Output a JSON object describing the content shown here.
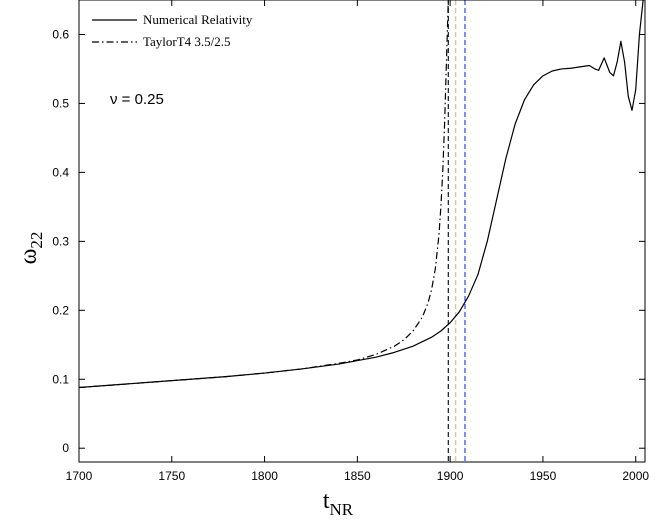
{
  "chart_data": {
    "type": "line",
    "title": "",
    "xlabel": "t",
    "xlabel_sub": "NR",
    "ylabel": "ω",
    "ylabel_sub": "22",
    "xlim": [
      1700,
      2005
    ],
    "ylim": [
      -0.02,
      0.65
    ],
    "xticks": [
      1700,
      1750,
      1800,
      1850,
      1900,
      1950,
      2000
    ],
    "yticks": [
      0,
      0.1,
      0.2,
      0.3,
      0.4,
      0.5,
      0.6
    ],
    "grid": false,
    "legend_position": "top-left",
    "annotation": "ν = 0.25",
    "series": [
      {
        "name": "Numerical Relativity",
        "style": "solid",
        "color": "#000000",
        "x": [
          1700,
          1720,
          1740,
          1760,
          1780,
          1800,
          1820,
          1840,
          1860,
          1870,
          1880,
          1890,
          1895,
          1900,
          1905,
          1910,
          1915,
          1920,
          1925,
          1930,
          1935,
          1940,
          1945,
          1950,
          1955,
          1960,
          1965,
          1970,
          1975,
          1978,
          1980,
          1983,
          1986,
          1988,
          1990,
          1992,
          1994,
          1996,
          1998,
          2000,
          2002,
          2004
        ],
        "y": [
          0.088,
          0.092,
          0.096,
          0.1,
          0.104,
          0.109,
          0.115,
          0.122,
          0.132,
          0.139,
          0.148,
          0.161,
          0.17,
          0.182,
          0.198,
          0.221,
          0.252,
          0.3,
          0.36,
          0.42,
          0.47,
          0.505,
          0.527,
          0.54,
          0.547,
          0.55,
          0.551,
          0.553,
          0.555,
          0.55,
          0.548,
          0.566,
          0.545,
          0.54,
          0.56,
          0.59,
          0.56,
          0.51,
          0.49,
          0.52,
          0.6,
          0.65
        ]
      },
      {
        "name": "TaylorT4 3.5/2.5",
        "style": "dashdot",
        "color": "#000000",
        "x": [
          1700,
          1720,
          1740,
          1760,
          1780,
          1800,
          1820,
          1840,
          1850,
          1860,
          1870,
          1875,
          1880,
          1885,
          1888,
          1890,
          1892,
          1894,
          1895,
          1896,
          1897,
          1898,
          1899
        ],
        "y": [
          0.088,
          0.092,
          0.096,
          0.1,
          0.104,
          0.109,
          0.115,
          0.123,
          0.128,
          0.136,
          0.148,
          0.157,
          0.17,
          0.19,
          0.21,
          0.23,
          0.26,
          0.31,
          0.35,
          0.4,
          0.47,
          0.56,
          0.65
        ]
      }
    ],
    "reference_lines": [
      {
        "x": 1899,
        "color": "#000000",
        "style": "dashed"
      },
      {
        "x": 1903,
        "color": "#d8c060",
        "style": "dashed"
      },
      {
        "x": 1908,
        "color": "#2030e0",
        "style": "dashed"
      }
    ]
  }
}
